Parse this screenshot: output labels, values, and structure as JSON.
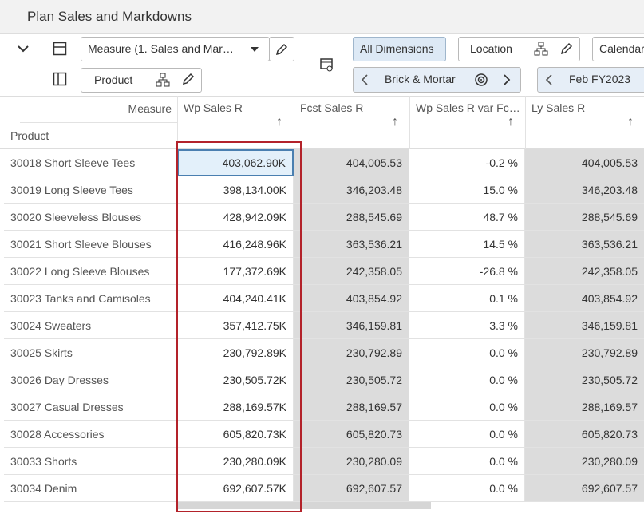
{
  "header": {
    "title": "Plan Sales and Markdowns"
  },
  "toolbar": {
    "measure": "Measure (1. Sales and Mar…",
    "product": "Product",
    "all_dimensions": "All Dimensions",
    "location": "Location",
    "calendar": "Calendar",
    "brick_mortar": "Brick & Mortar",
    "period": "Feb FY2023"
  },
  "table": {
    "corner_measure": "Measure",
    "corner_product": "Product",
    "columns": [
      "Wp Sales R",
      "Fcst Sales R",
      "Wp Sales R var Fc…",
      "Ly Sales R"
    ],
    "rows": [
      [
        "30018 Short Sleeve Tees",
        "403,062.90K",
        "404,005.53",
        "-0.2 %",
        "404,005.53"
      ],
      [
        "30019 Long Sleeve Tees",
        "398,134.00K",
        "346,203.48",
        "15.0 %",
        "346,203.48"
      ],
      [
        "30020 Sleeveless Blouses",
        "428,942.09K",
        "288,545.69",
        "48.7 %",
        "288,545.69"
      ],
      [
        "30021 Short Sleeve Blouses",
        "416,248.96K",
        "363,536.21",
        "14.5 %",
        "363,536.21"
      ],
      [
        "30022 Long Sleeve Blouses",
        "177,372.69K",
        "242,358.05",
        "-26.8 %",
        "242,358.05"
      ],
      [
        "30023 Tanks and Camisoles",
        "404,240.41K",
        "403,854.92",
        "0.1 %",
        "403,854.92"
      ],
      [
        "30024 Sweaters",
        "357,412.75K",
        "346,159.81",
        "3.3 %",
        "346,159.81"
      ],
      [
        "30025 Skirts",
        "230,792.89K",
        "230,792.89",
        "0.0 %",
        "230,792.89"
      ],
      [
        "30026 Day Dresses",
        "230,505.72K",
        "230,505.72",
        "0.0 %",
        "230,505.72"
      ],
      [
        "30027 Casual Dresses",
        "288,169.57K",
        "288,169.57",
        "0.0 %",
        "288,169.57"
      ],
      [
        "30028 Accessories",
        "605,820.73K",
        "605,820.73",
        "0.0 %",
        "605,820.73"
      ],
      [
        "30033 Shorts",
        "230,280.09K",
        "230,280.09",
        "0.0 %",
        "230,280.09"
      ],
      [
        "30034 Denim",
        "692,607.57K",
        "692,607.57",
        "0.0 %",
        "692,607.57"
      ]
    ]
  }
}
